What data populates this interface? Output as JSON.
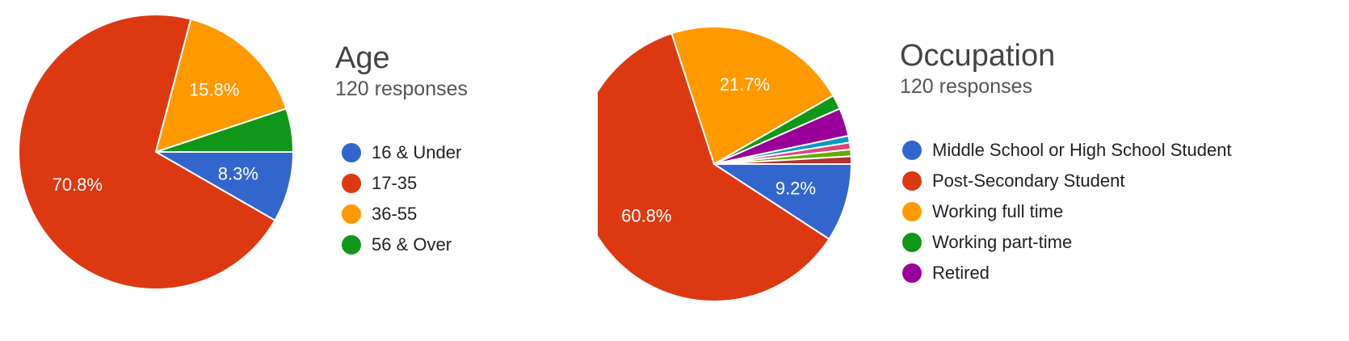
{
  "chart_data": [
    {
      "type": "pie",
      "title": "Age",
      "subtitle": "120 responses",
      "legend_position": "right",
      "slices": [
        {
          "label": "16 & Under",
          "value": 8.3,
          "display": "8.3%",
          "color": "#3366cc"
        },
        {
          "label": "17-35",
          "value": 70.8,
          "display": "70.8%",
          "color": "#dc3912"
        },
        {
          "label": "36-55",
          "value": 15.8,
          "display": "15.8%",
          "color": "#ff9900"
        },
        {
          "label": "56 & Over",
          "value": 5.1,
          "display": "",
          "color": "#109618"
        }
      ]
    },
    {
      "type": "pie",
      "title": "Occupation",
      "subtitle": "120 responses",
      "legend_position": "right",
      "slices": [
        {
          "label": "Middle School or High School Student",
          "value": 9.2,
          "display": "9.2%",
          "color": "#3366cc"
        },
        {
          "label": "Post-Secondary Student",
          "value": 60.8,
          "display": "60.8%",
          "color": "#dc3912"
        },
        {
          "label": "Working full time",
          "value": 21.7,
          "display": "21.7%",
          "color": "#ff9900"
        },
        {
          "label": "Working part-time",
          "value": 1.7,
          "display": "",
          "color": "#109618"
        },
        {
          "label": "Retired",
          "value": 3.3,
          "display": "",
          "color": "#990099"
        },
        {
          "value": 0.8,
          "display": "",
          "color": "#0099c6"
        },
        {
          "value": 0.8,
          "display": "",
          "color": "#dd4477"
        },
        {
          "value": 0.8,
          "display": "",
          "color": "#66aa00"
        },
        {
          "value": 0.9,
          "display": "",
          "color": "#b82e2e"
        }
      ]
    }
  ]
}
